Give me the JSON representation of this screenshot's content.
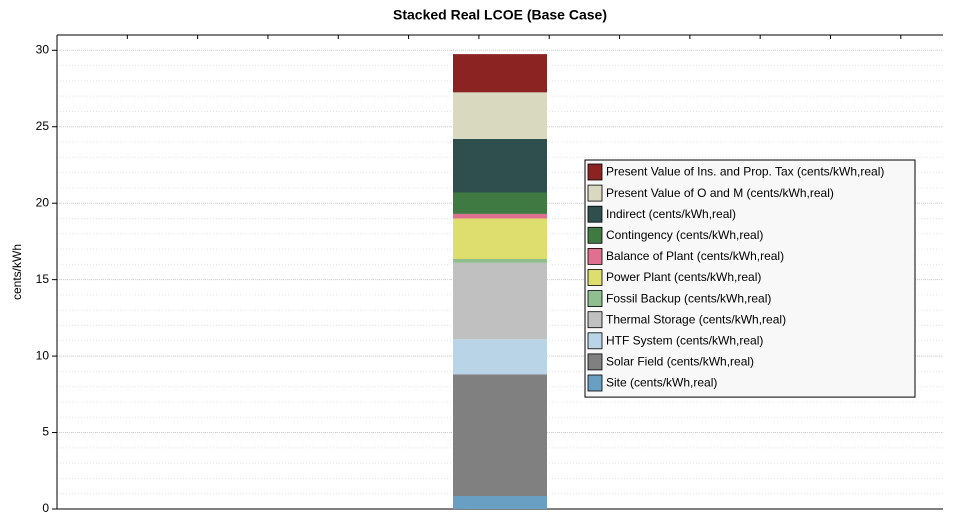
{
  "chart_data": {
    "type": "stacked_bar",
    "title": "Stacked Real LCOE (Base Case)",
    "y_label": "cents/kWh",
    "categories": [
      null
    ],
    "ylim": [
      0,
      31
    ],
    "yticks": [
      0,
      5,
      10,
      15,
      20,
      25,
      30
    ],
    "grid": true,
    "legend_position": "right",
    "series": [
      {
        "name": "Site (cents/kWh,real)",
        "color": "#6a9fc4",
        "values": [
          0.85
        ]
      },
      {
        "name": "Solar Field (cents/kWh,real)",
        "color": "#808080",
        "values": [
          7.95
        ]
      },
      {
        "name": "HTF System (cents/kWh,real)",
        "color": "#b8d4e6",
        "values": [
          2.3
        ]
      },
      {
        "name": "Thermal Storage (cents/kWh,real)",
        "color": "#c0c0c0",
        "values": [
          5.0
        ]
      },
      {
        "name": "Fossil Backup (cents/kWh,real)",
        "color": "#8fbf8f",
        "values": [
          0.25
        ]
      },
      {
        "name": "Power Plant (cents/kWh,real)",
        "color": "#dede6e",
        "values": [
          2.65
        ]
      },
      {
        "name": "Balance of Plant (cents/kWh,real)",
        "color": "#e07090",
        "values": [
          0.3
        ]
      },
      {
        "name": "Contingency (cents/kWh,real)",
        "color": "#3f7a42",
        "values": [
          1.4
        ]
      },
      {
        "name": "Indirect (cents/kWh,real)",
        "color": "#2f4f4f",
        "values": [
          3.5
        ]
      },
      {
        "name": "Present Value of O and M (cents/kWh,real)",
        "color": "#d9d9c0",
        "values": [
          3.05
        ]
      },
      {
        "name": "Present Value of Ins. and Prop. Tax (cents/kWh,real)",
        "color": "#8b2323",
        "values": [
          2.5
        ]
      }
    ]
  }
}
